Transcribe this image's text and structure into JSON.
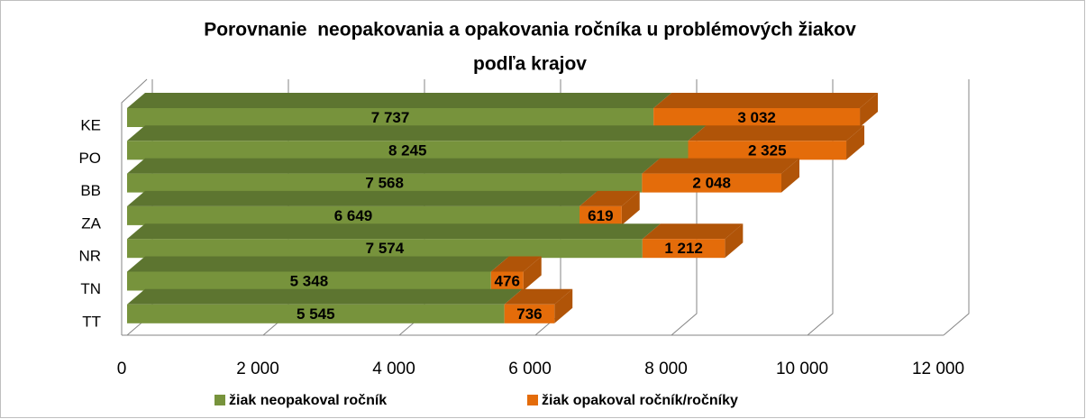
{
  "chart_data": {
    "type": "bar",
    "orientation": "horizontal",
    "stacked": true,
    "three_d": true,
    "title": [
      "Porovnanie  neopakovania a opakovania ročníka u problémových žiakov",
      "podľa krajov"
    ],
    "categories": [
      "KE",
      "PO",
      "BB",
      "ZA",
      "NR",
      "TN",
      "TT"
    ],
    "series": [
      {
        "name": "žiak neopakoval ročník",
        "color": "#77933c",
        "shade": "#5d7530",
        "values": [
          7737,
          8245,
          7568,
          6649,
          7574,
          5348,
          5545
        ],
        "value_labels": [
          "7 737",
          "8 245",
          "7 568",
          "6 649",
          "7 574",
          "5 348",
          "5 545"
        ]
      },
      {
        "name": "žiak opakoval ročník/ročníky",
        "color": "#e46c0a",
        "shade": "#b05408",
        "values": [
          3032,
          2325,
          2048,
          619,
          1212,
          476,
          736
        ],
        "value_labels": [
          "3 032",
          "2 325",
          "2 048",
          "619",
          "1 212",
          "476",
          "736"
        ]
      }
    ],
    "xlim": [
      0,
      12000
    ],
    "xticks": [
      0,
      {
        "value": 2000,
        "label": "2 000"
      },
      {
        "value": 4000,
        "label": "4 000"
      },
      {
        "value": 6000,
        "label": "6 000"
      },
      {
        "value": 8000,
        "label": "8 000"
      },
      {
        "value": 10000,
        "label": "10 000"
      },
      {
        "value": 12000,
        "label": "12 000"
      }
    ],
    "grid": true,
    "legend": "bottom"
  }
}
